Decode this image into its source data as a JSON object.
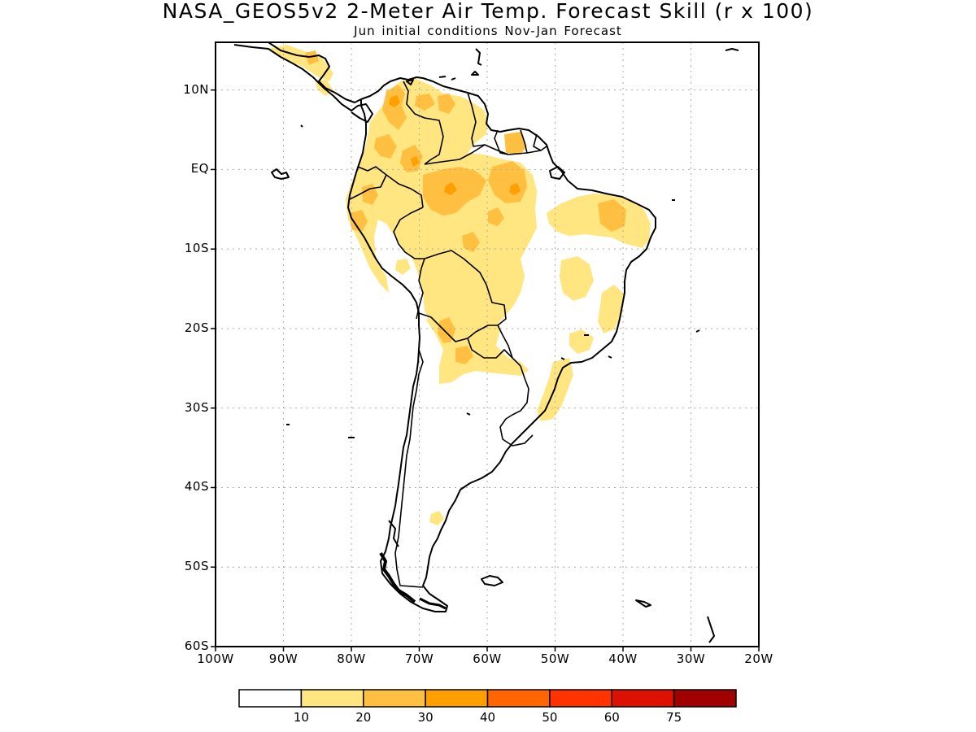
{
  "title": "NASA_GEOS5v2 2-Meter Air Temp. Forecast Skill (r x 100)",
  "subtitle": "Jun initial conditions  Nov-Jan Forecast",
  "map": {
    "lon_range": [
      -100,
      -20
    ],
    "lat_range": [
      -60,
      16
    ],
    "lat_ticks": [
      {
        "value": 10,
        "label": "10N"
      },
      {
        "value": 0,
        "label": "EQ"
      },
      {
        "value": -10,
        "label": "10S"
      },
      {
        "value": -20,
        "label": "20S"
      },
      {
        "value": -30,
        "label": "30S"
      },
      {
        "value": -40,
        "label": "40S"
      },
      {
        "value": -50,
        "label": "50S"
      },
      {
        "value": -60,
        "label": "60S"
      }
    ],
    "lon_ticks": [
      {
        "value": -100,
        "label": "100W"
      },
      {
        "value": -90,
        "label": "90W"
      },
      {
        "value": -80,
        "label": "80W"
      },
      {
        "value": -70,
        "label": "70W"
      },
      {
        "value": -60,
        "label": "60W"
      },
      {
        "value": -50,
        "label": "50W"
      },
      {
        "value": -40,
        "label": "40W"
      },
      {
        "value": -30,
        "label": "30W"
      },
      {
        "value": -20,
        "label": "20W"
      }
    ]
  },
  "colorbar": {
    "colors": [
      "#ffffff",
      "#ffe680",
      "#ffbf40",
      "#ff9f00",
      "#ff6600",
      "#ff3300",
      "#dd1100",
      "#a00000"
    ],
    "labels": [
      "10",
      "20",
      "30",
      "40",
      "50",
      "60",
      "75"
    ]
  },
  "colors": {
    "level_10_20": "#ffe680",
    "level_20_30": "#ffbf40",
    "level_30_40": "#ff9f00"
  }
}
